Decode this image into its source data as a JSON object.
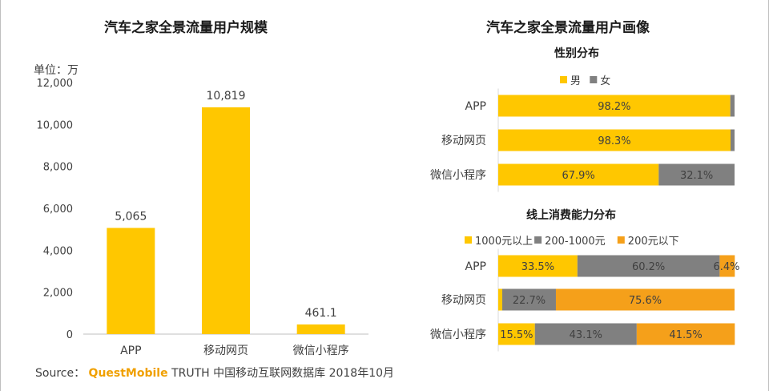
{
  "left_panel": {
    "title": "汽车之家全景流量用户规模",
    "unit": "单位：万"
  },
  "right_panel": {
    "title": "汽车之家全景流量用户画像"
  },
  "source": {
    "prefix": "Source：",
    "brand": "QuestMobile",
    "rest": "TRUTH 中国移动互联网数据库 2018年10月"
  },
  "colors": {
    "yellow": "#ffc700",
    "gray": "#808080",
    "orange": "#f5a01a"
  },
  "chart_data": [
    {
      "type": "bar",
      "title": "汽车之家全景流量用户规模",
      "ylabel": "单位：万",
      "categories": [
        "APP",
        "移动网页",
        "微信小程序"
      ],
      "values": [
        5065,
        10819,
        461.1
      ],
      "value_labels": [
        "5,065",
        "10,819",
        "461.1"
      ],
      "ylim": [
        0,
        12000
      ],
      "yticks": [
        0,
        2000,
        4000,
        6000,
        8000,
        10000,
        12000
      ],
      "ytick_labels": [
        "0",
        "2,000",
        "4,000",
        "6,000",
        "8,000",
        "10,000",
        "12,000"
      ],
      "grid": false,
      "color": "#ffc700"
    },
    {
      "type": "bar",
      "orientation": "horizontal-stacked-100",
      "title": "性别分布",
      "categories": [
        "APP",
        "移动网页",
        "微信小程序"
      ],
      "series": [
        {
          "name": "男",
          "values": [
            98.2,
            98.3,
            67.9
          ],
          "labels": [
            "98.2%",
            "98.3%",
            "67.9%"
          ],
          "color": "#ffc700"
        },
        {
          "name": "女",
          "values": [
            1.8,
            1.7,
            32.1
          ],
          "labels": [
            "",
            "",
            "32.1%"
          ],
          "color": "#808080"
        }
      ],
      "legend": "top-center"
    },
    {
      "type": "bar",
      "orientation": "horizontal-stacked-100",
      "title": "线上消费能力分布",
      "categories": [
        "APP",
        "移动网页",
        "微信小程序"
      ],
      "series": [
        {
          "name": "1000元以上",
          "values": [
            33.5,
            1.7,
            15.5
          ],
          "labels": [
            "33.5%",
            "",
            "15.5%"
          ],
          "color": "#ffc700"
        },
        {
          "name": "200-1000元",
          "values": [
            60.2,
            22.7,
            43.1
          ],
          "labels": [
            "60.2%",
            "22.7%",
            "43.1%"
          ],
          "color": "#808080"
        },
        {
          "name": "200元以下",
          "values": [
            6.4,
            75.6,
            41.5
          ],
          "labels": [
            "6.4%",
            "75.6%",
            "41.5%"
          ],
          "color": "#f5a01a"
        }
      ],
      "legend": "top-center"
    }
  ]
}
